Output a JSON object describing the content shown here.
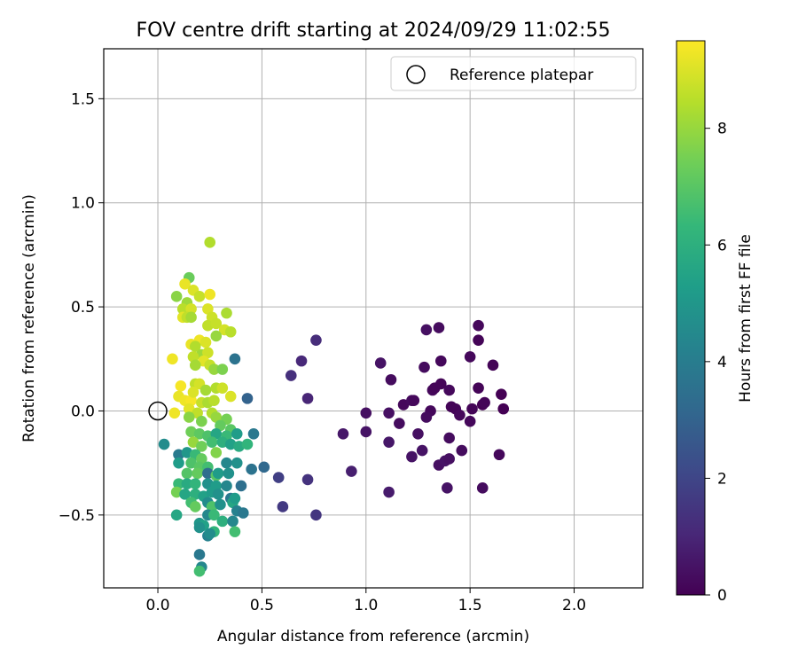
{
  "chart_data": {
    "type": "scatter",
    "title": "FOV centre drift starting at 2024/09/29 11:02:55",
    "xlabel": "Angular distance from reference (arcmin)",
    "ylabel": "Rotation from reference (arcmin)",
    "xlim": [
      -0.26,
      2.33
    ],
    "ylim": [
      -0.85,
      1.74
    ],
    "xticks": [
      0.0,
      0.5,
      1.0,
      1.5,
      2.0
    ],
    "xtick_labels": [
      "0.0",
      "0.5",
      "1.0",
      "1.5",
      "2.0"
    ],
    "yticks": [
      -0.5,
      0.0,
      0.5,
      1.0,
      1.5
    ],
    "ytick_labels": [
      "−0.5",
      "0.0",
      "0.5",
      "1.0",
      "1.5"
    ],
    "grid": true,
    "legend": {
      "position": "top-right",
      "entries": [
        "Reference platepar"
      ]
    },
    "reference_point": {
      "name": "Reference platepar",
      "x": 0.0,
      "y": 0.0
    },
    "colorbar": {
      "label": "Hours from first FF file",
      "colormap": "viridis",
      "range": [
        0,
        9.5
      ],
      "ticks": [
        0,
        2,
        4,
        6,
        8
      ],
      "tick_labels": [
        "0",
        "2",
        "4",
        "6",
        "8"
      ]
    },
    "points": [
      {
        "x": 0.76,
        "y": 0.34,
        "h": 1.2
      },
      {
        "x": 0.69,
        "y": 0.24,
        "h": 1.1
      },
      {
        "x": 0.64,
        "y": 0.17,
        "h": 1.3
      },
      {
        "x": 0.72,
        "y": 0.06,
        "h": 1.0
      },
      {
        "x": 0.72,
        "y": -0.33,
        "h": 1.4
      },
      {
        "x": 0.76,
        "y": -0.5,
        "h": 1.5
      },
      {
        "x": 0.6,
        "y": -0.46,
        "h": 1.6
      },
      {
        "x": 0.58,
        "y": -0.32,
        "h": 1.8
      },
      {
        "x": 0.93,
        "y": -0.29,
        "h": 0.8
      },
      {
        "x": 0.89,
        "y": -0.11,
        "h": 0.6
      },
      {
        "x": 1.0,
        "y": -0.1,
        "h": 0.5
      },
      {
        "x": 1.0,
        "y": -0.01,
        "h": 0.4
      },
      {
        "x": 1.07,
        "y": 0.23,
        "h": 0.5
      },
      {
        "x": 1.12,
        "y": 0.15,
        "h": 0.3
      },
      {
        "x": 1.11,
        "y": -0.01,
        "h": 0.4
      },
      {
        "x": 1.11,
        "y": -0.15,
        "h": 0.6
      },
      {
        "x": 1.11,
        "y": -0.39,
        "h": 0.7
      },
      {
        "x": 1.16,
        "y": -0.06,
        "h": 0.3
      },
      {
        "x": 1.18,
        "y": 0.03,
        "h": 0.2
      },
      {
        "x": 1.22,
        "y": 0.05,
        "h": 0.3
      },
      {
        "x": 1.23,
        "y": 0.05,
        "h": 0.2
      },
      {
        "x": 1.22,
        "y": -0.22,
        "h": 0.5
      },
      {
        "x": 1.25,
        "y": -0.11,
        "h": 0.4
      },
      {
        "x": 1.27,
        "y": -0.19,
        "h": 0.5
      },
      {
        "x": 1.28,
        "y": 0.21,
        "h": 0.3
      },
      {
        "x": 1.29,
        "y": 0.39,
        "h": 0.4
      },
      {
        "x": 1.31,
        "y": 0.0,
        "h": 0.2
      },
      {
        "x": 1.29,
        "y": -0.03,
        "h": 0.3
      },
      {
        "x": 1.32,
        "y": 0.1,
        "h": 0.2
      },
      {
        "x": 1.33,
        "y": 0.11,
        "h": 0.1
      },
      {
        "x": 1.35,
        "y": 0.4,
        "h": 0.3
      },
      {
        "x": 1.36,
        "y": 0.24,
        "h": 0.2
      },
      {
        "x": 1.36,
        "y": 0.13,
        "h": 0.1
      },
      {
        "x": 1.35,
        "y": -0.26,
        "h": 0.4
      },
      {
        "x": 1.38,
        "y": -0.24,
        "h": 0.5
      },
      {
        "x": 1.4,
        "y": 0.1,
        "h": 0.2
      },
      {
        "x": 1.4,
        "y": -0.13,
        "h": 0.3
      },
      {
        "x": 1.4,
        "y": -0.23,
        "h": 0.4
      },
      {
        "x": 1.39,
        "y": -0.37,
        "h": 0.5
      },
      {
        "x": 1.41,
        "y": 0.02,
        "h": 0.1
      },
      {
        "x": 1.43,
        "y": 0.01,
        "h": 0.1
      },
      {
        "x": 1.45,
        "y": -0.02,
        "h": 0.2
      },
      {
        "x": 1.46,
        "y": -0.19,
        "h": 0.3
      },
      {
        "x": 1.5,
        "y": 0.26,
        "h": 0.2
      },
      {
        "x": 1.5,
        "y": -0.05,
        "h": 0.2
      },
      {
        "x": 1.51,
        "y": 0.01,
        "h": 0.1
      },
      {
        "x": 1.54,
        "y": 0.41,
        "h": 0.2
      },
      {
        "x": 1.54,
        "y": 0.34,
        "h": 0.1
      },
      {
        "x": 1.54,
        "y": 0.11,
        "h": 0.1
      },
      {
        "x": 1.56,
        "y": 0.03,
        "h": 0.0
      },
      {
        "x": 1.57,
        "y": 0.04,
        "h": 0.1
      },
      {
        "x": 1.56,
        "y": -0.37,
        "h": 0.3
      },
      {
        "x": 1.61,
        "y": 0.22,
        "h": 0.1
      },
      {
        "x": 1.64,
        "y": -0.21,
        "h": 0.2
      },
      {
        "x": 1.65,
        "y": 0.08,
        "h": 0.0
      },
      {
        "x": 1.66,
        "y": 0.01,
        "h": 0.0
      },
      {
        "x": 0.25,
        "y": 0.81,
        "h": 8.4
      },
      {
        "x": 0.15,
        "y": 0.64,
        "h": 7.3
      },
      {
        "x": 0.13,
        "y": 0.61,
        "h": 9.2
      },
      {
        "x": 0.09,
        "y": 0.55,
        "h": 7.8
      },
      {
        "x": 0.17,
        "y": 0.58,
        "h": 9.0
      },
      {
        "x": 0.2,
        "y": 0.55,
        "h": 8.7
      },
      {
        "x": 0.25,
        "y": 0.56,
        "h": 9.3
      },
      {
        "x": 0.14,
        "y": 0.52,
        "h": 8.1
      },
      {
        "x": 0.12,
        "y": 0.49,
        "h": 8.5
      },
      {
        "x": 0.16,
        "y": 0.49,
        "h": 8.9
      },
      {
        "x": 0.12,
        "y": 0.45,
        "h": 9.1
      },
      {
        "x": 0.14,
        "y": 0.45,
        "h": 8.6
      },
      {
        "x": 0.16,
        "y": 0.45,
        "h": 8.2
      },
      {
        "x": 0.24,
        "y": 0.49,
        "h": 9.0
      },
      {
        "x": 0.26,
        "y": 0.45,
        "h": 8.8
      },
      {
        "x": 0.33,
        "y": 0.47,
        "h": 8.3
      },
      {
        "x": 0.24,
        "y": 0.41,
        "h": 8.6
      },
      {
        "x": 0.28,
        "y": 0.42,
        "h": 8.7
      },
      {
        "x": 0.32,
        "y": 0.39,
        "h": 8.9
      },
      {
        "x": 0.35,
        "y": 0.38,
        "h": 8.5
      },
      {
        "x": 0.28,
        "y": 0.36,
        "h": 8.0
      },
      {
        "x": 0.16,
        "y": 0.32,
        "h": 9.2
      },
      {
        "x": 0.2,
        "y": 0.34,
        "h": 9.3
      },
      {
        "x": 0.23,
        "y": 0.33,
        "h": 9.0
      },
      {
        "x": 0.18,
        "y": 0.31,
        "h": 8.4
      },
      {
        "x": 0.21,
        "y": 0.27,
        "h": 8.1
      },
      {
        "x": 0.17,
        "y": 0.26,
        "h": 8.6
      },
      {
        "x": 0.24,
        "y": 0.28,
        "h": 8.8
      },
      {
        "x": 0.07,
        "y": 0.25,
        "h": 9.3
      },
      {
        "x": 0.22,
        "y": 0.24,
        "h": 9.1
      },
      {
        "x": 0.25,
        "y": 0.22,
        "h": 8.7
      },
      {
        "x": 0.18,
        "y": 0.22,
        "h": 8.2
      },
      {
        "x": 0.27,
        "y": 0.2,
        "h": 8.0
      },
      {
        "x": 0.31,
        "y": 0.2,
        "h": 7.6
      },
      {
        "x": 0.37,
        "y": 0.25,
        "h": 3.6
      },
      {
        "x": 0.11,
        "y": 0.12,
        "h": 9.4
      },
      {
        "x": 0.18,
        "y": 0.13,
        "h": 8.6
      },
      {
        "x": 0.2,
        "y": 0.13,
        "h": 8.9
      },
      {
        "x": 0.23,
        "y": 0.1,
        "h": 8.2
      },
      {
        "x": 0.28,
        "y": 0.11,
        "h": 8.4
      },
      {
        "x": 0.31,
        "y": 0.11,
        "h": 8.8
      },
      {
        "x": 0.1,
        "y": 0.07,
        "h": 9.2
      },
      {
        "x": 0.13,
        "y": 0.05,
        "h": 9.3
      },
      {
        "x": 0.16,
        "y": 0.05,
        "h": 9.4
      },
      {
        "x": 0.17,
        "y": 0.09,
        "h": 9.0
      },
      {
        "x": 0.21,
        "y": 0.04,
        "h": 8.7
      },
      {
        "x": 0.24,
        "y": 0.04,
        "h": 8.3
      },
      {
        "x": 0.27,
        "y": 0.05,
        "h": 8.5
      },
      {
        "x": 0.35,
        "y": 0.07,
        "h": 9.0
      },
      {
        "x": 0.43,
        "y": 0.06,
        "h": 3.0
      },
      {
        "x": 0.08,
        "y": -0.01,
        "h": 9.3
      },
      {
        "x": 0.15,
        "y": 0.01,
        "h": 9.1
      },
      {
        "x": 0.19,
        "y": -0.01,
        "h": 8.6
      },
      {
        "x": 0.26,
        "y": -0.01,
        "h": 8.4
      },
      {
        "x": 0.28,
        "y": -0.03,
        "h": 8.0
      },
      {
        "x": 0.33,
        "y": -0.04,
        "h": 7.5
      },
      {
        "x": 0.15,
        "y": -0.03,
        "h": 7.8
      },
      {
        "x": 0.21,
        "y": -0.05,
        "h": 7.6
      },
      {
        "x": 0.3,
        "y": -0.07,
        "h": 7.2
      },
      {
        "x": 0.35,
        "y": -0.09,
        "h": 7.0
      },
      {
        "x": 0.16,
        "y": -0.1,
        "h": 7.4
      },
      {
        "x": 0.2,
        "y": -0.11,
        "h": 7.1
      },
      {
        "x": 0.24,
        "y": -0.12,
        "h": 6.8
      },
      {
        "x": 0.28,
        "y": -0.11,
        "h": 5.6
      },
      {
        "x": 0.33,
        "y": -0.12,
        "h": 6.4
      },
      {
        "x": 0.38,
        "y": -0.11,
        "h": 5.2
      },
      {
        "x": 0.46,
        "y": -0.11,
        "h": 3.8
      },
      {
        "x": 0.03,
        "y": -0.16,
        "h": 4.6
      },
      {
        "x": 0.17,
        "y": -0.15,
        "h": 8.0
      },
      {
        "x": 0.21,
        "y": -0.17,
        "h": 7.4
      },
      {
        "x": 0.26,
        "y": -0.15,
        "h": 6.6
      },
      {
        "x": 0.31,
        "y": -0.15,
        "h": 6.0
      },
      {
        "x": 0.35,
        "y": -0.16,
        "h": 5.4
      },
      {
        "x": 0.39,
        "y": -0.17,
        "h": 5.8
      },
      {
        "x": 0.43,
        "y": -0.16,
        "h": 6.2
      },
      {
        "x": 0.1,
        "y": -0.21,
        "h": 3.9
      },
      {
        "x": 0.14,
        "y": -0.2,
        "h": 5.0
      },
      {
        "x": 0.18,
        "y": -0.21,
        "h": 6.4
      },
      {
        "x": 0.21,
        "y": -0.23,
        "h": 7.2
      },
      {
        "x": 0.28,
        "y": -0.2,
        "h": 7.7
      },
      {
        "x": 0.1,
        "y": -0.25,
        "h": 5.2
      },
      {
        "x": 0.16,
        "y": -0.25,
        "h": 6.8
      },
      {
        "x": 0.2,
        "y": -0.27,
        "h": 7.0
      },
      {
        "x": 0.24,
        "y": -0.27,
        "h": 6.6
      },
      {
        "x": 0.33,
        "y": -0.25,
        "h": 4.4
      },
      {
        "x": 0.38,
        "y": -0.25,
        "h": 4.8
      },
      {
        "x": 0.45,
        "y": -0.28,
        "h": 3.6
      },
      {
        "x": 0.51,
        "y": -0.27,
        "h": 3.2
      },
      {
        "x": 0.14,
        "y": -0.3,
        "h": 6.9
      },
      {
        "x": 0.19,
        "y": -0.3,
        "h": 7.2
      },
      {
        "x": 0.24,
        "y": -0.3,
        "h": 3.4
      },
      {
        "x": 0.28,
        "y": -0.31,
        "h": 7.0
      },
      {
        "x": 0.29,
        "y": -0.3,
        "h": 5.2
      },
      {
        "x": 0.34,
        "y": -0.3,
        "h": 4.8
      },
      {
        "x": 0.1,
        "y": -0.35,
        "h": 6.4
      },
      {
        "x": 0.14,
        "y": -0.35,
        "h": 5.8
      },
      {
        "x": 0.18,
        "y": -0.35,
        "h": 6.2
      },
      {
        "x": 0.24,
        "y": -0.35,
        "h": 4.8
      },
      {
        "x": 0.28,
        "y": -0.36,
        "h": 5.2
      },
      {
        "x": 0.33,
        "y": -0.36,
        "h": 4.4
      },
      {
        "x": 0.4,
        "y": -0.36,
        "h": 3.5
      },
      {
        "x": 0.09,
        "y": -0.39,
        "h": 7.5
      },
      {
        "x": 0.13,
        "y": -0.4,
        "h": 5.6
      },
      {
        "x": 0.18,
        "y": -0.4,
        "h": 6.0
      },
      {
        "x": 0.22,
        "y": -0.41,
        "h": 5.4
      },
      {
        "x": 0.26,
        "y": -0.39,
        "h": 5.2
      },
      {
        "x": 0.29,
        "y": -0.4,
        "h": 4.8
      },
      {
        "x": 0.35,
        "y": -0.42,
        "h": 3.8
      },
      {
        "x": 0.16,
        "y": -0.44,
        "h": 6.6
      },
      {
        "x": 0.24,
        "y": -0.44,
        "h": 4.6
      },
      {
        "x": 0.26,
        "y": -0.46,
        "h": 6.8
      },
      {
        "x": 0.3,
        "y": -0.45,
        "h": 4.8
      },
      {
        "x": 0.36,
        "y": -0.44,
        "h": 5.6
      },
      {
        "x": 0.37,
        "y": -0.42,
        "h": 5.2
      },
      {
        "x": 0.18,
        "y": -0.46,
        "h": 7.2
      },
      {
        "x": 0.09,
        "y": -0.5,
        "h": 5.6
      },
      {
        "x": 0.24,
        "y": -0.5,
        "h": 4.4
      },
      {
        "x": 0.27,
        "y": -0.5,
        "h": 6.4
      },
      {
        "x": 0.38,
        "y": -0.48,
        "h": 4.2
      },
      {
        "x": 0.41,
        "y": -0.49,
        "h": 3.8
      },
      {
        "x": 0.2,
        "y": -0.54,
        "h": 5.0
      },
      {
        "x": 0.22,
        "y": -0.55,
        "h": 5.4
      },
      {
        "x": 0.31,
        "y": -0.53,
        "h": 6.0
      },
      {
        "x": 0.36,
        "y": -0.53,
        "h": 4.4
      },
      {
        "x": 0.2,
        "y": -0.56,
        "h": 4.8
      },
      {
        "x": 0.27,
        "y": -0.58,
        "h": 6.2
      },
      {
        "x": 0.37,
        "y": -0.58,
        "h": 6.6
      },
      {
        "x": 0.24,
        "y": -0.6,
        "h": 4.2
      },
      {
        "x": 0.25,
        "y": -0.59,
        "h": 4.6
      },
      {
        "x": 0.2,
        "y": -0.69,
        "h": 3.8
      },
      {
        "x": 0.21,
        "y": -0.75,
        "h": 4.4
      },
      {
        "x": 0.2,
        "y": -0.77,
        "h": 6.6
      }
    ]
  }
}
